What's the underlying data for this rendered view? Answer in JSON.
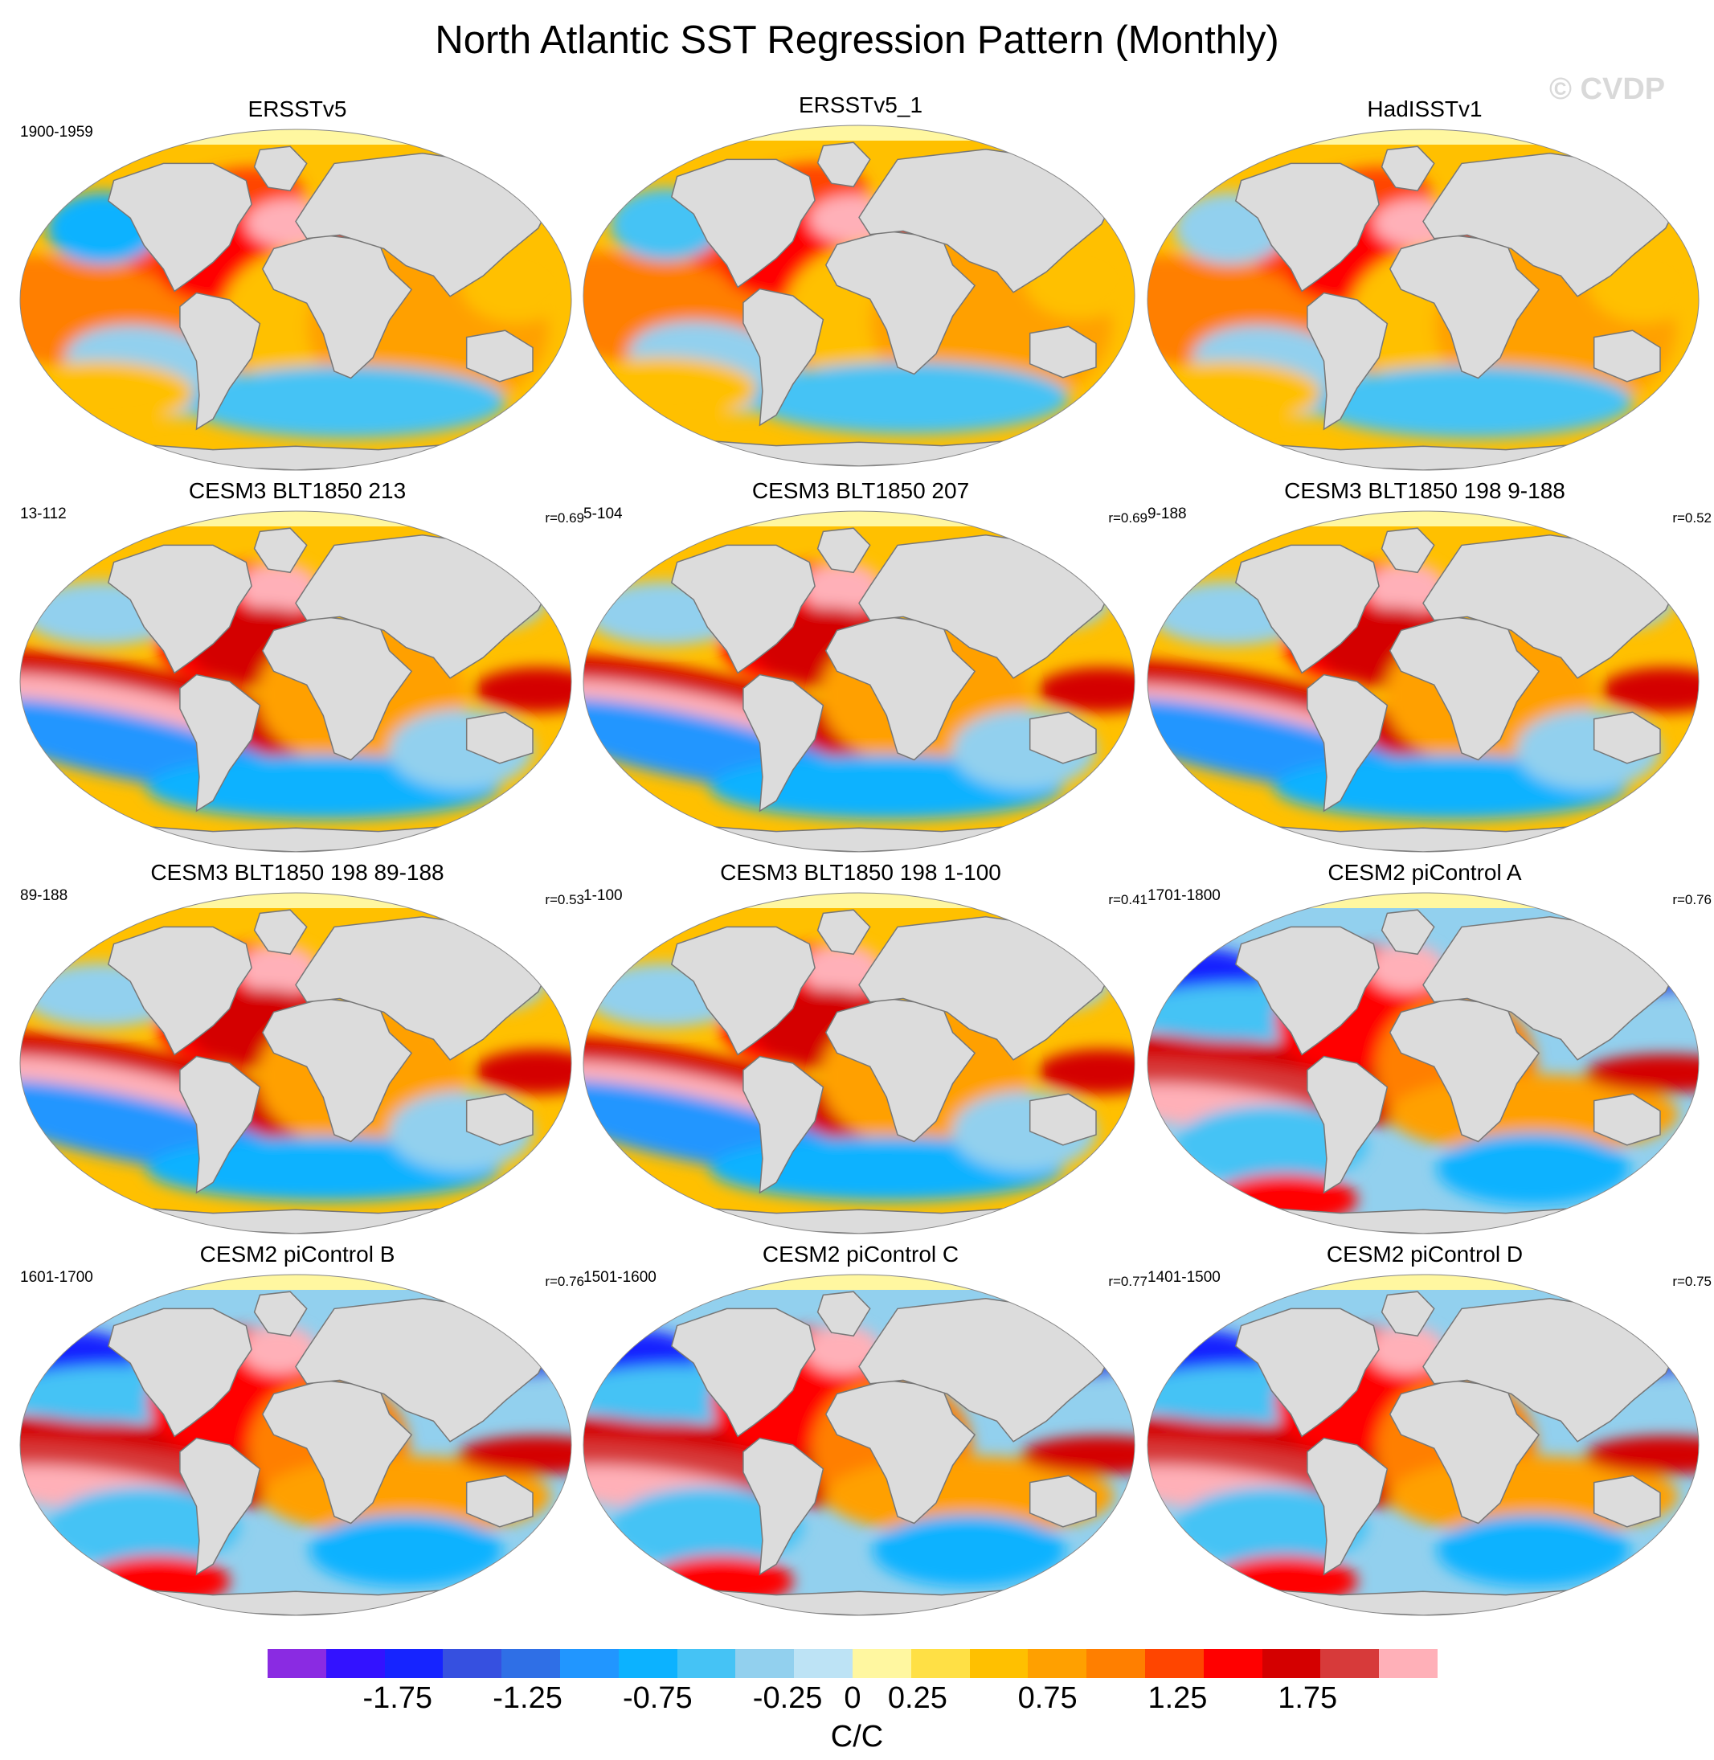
{
  "title": "North Atlantic SST Regression Pattern (Monthly)",
  "watermark": "© CVDP",
  "panels": [
    {
      "title": "ERSSTv5",
      "years": "1900-1959",
      "r": "",
      "style": "obs"
    },
    {
      "title": "ERSSTv5_1",
      "years": "",
      "r": "",
      "style": "obs"
    },
    {
      "title": "HadISSTv1",
      "years": "",
      "r": "",
      "style": "obs"
    },
    {
      "title": "CESM3 BLT1850 213",
      "years": "13-112",
      "r": "r=0.69",
      "style": "cesm3"
    },
    {
      "title": "CESM3 BLT1850 207",
      "years": "5-104",
      "r": "r=0.69",
      "style": "cesm3"
    },
    {
      "title": "CESM3 BLT1850 198 9-188",
      "years": "9-188",
      "r": "r=0.52",
      "style": "cesm3"
    },
    {
      "title": "CESM3 BLT1850 198 89-188",
      "years": "89-188",
      "r": "r=0.53",
      "style": "cesm3"
    },
    {
      "title": "CESM3 BLT1850 198 1-100",
      "years": "1-100",
      "r": "r=0.41",
      "style": "cesm3"
    },
    {
      "title": "CESM2 piControl A",
      "years": "1701-1800",
      "r": "r=0.76",
      "style": "cesm2"
    },
    {
      "title": "CESM2 piControl B",
      "years": "1601-1700",
      "r": "r=0.76",
      "style": "cesm2"
    },
    {
      "title": "CESM2 piControl C",
      "years": "1501-1600",
      "r": "r=0.77",
      "style": "cesm2"
    },
    {
      "title": "CESM2 piControl D",
      "years": "1401-1500",
      "r": "r=0.75",
      "style": "cesm2"
    }
  ],
  "colorbar": {
    "units": "C/C",
    "colors": [
      "#8a2be2",
      "#3312ff",
      "#1624ff",
      "#3650e0",
      "#2f6fe6",
      "#2196ff",
      "#0cb2ff",
      "#45c3f5",
      "#92d0ee",
      "#bde3f5",
      "#fff7a0",
      "#ffe045",
      "#ffc000",
      "#ffa000",
      "#ff7f00",
      "#ff4500",
      "#ff0000",
      "#d40000",
      "#d73a3a",
      "#ffb0b8"
    ],
    "labels": [
      "-1.75",
      "-1.25",
      "-0.75",
      "-0.25",
      "0",
      "0.25",
      "0.75",
      "1.25",
      "1.75"
    ],
    "label_values": [
      -1.75,
      -1.25,
      -0.75,
      -0.25,
      0,
      0.25,
      0.75,
      1.25,
      1.75
    ],
    "range": [
      -2.25,
      2.25
    ]
  },
  "colors": {
    "land": "#dcdcdc",
    "coast": "#777777"
  }
}
